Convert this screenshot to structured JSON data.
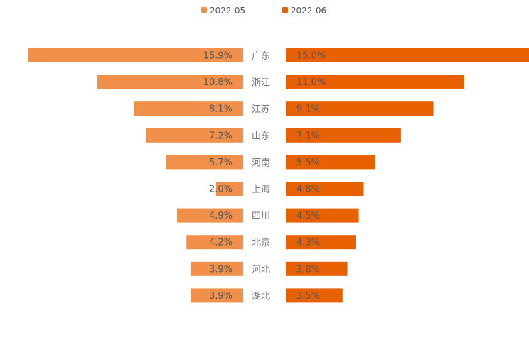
{
  "chart_data": {
    "type": "bar",
    "layout": "butterfly",
    "categories": [
      "广东",
      "浙江",
      "江苏",
      "山东",
      "河南",
      "上海",
      "四川",
      "北京",
      "河北",
      "湖北"
    ],
    "series": [
      {
        "name": "2022-05",
        "color": "#f0904a",
        "side": "left",
        "values": [
          15.9,
          10.8,
          8.1,
          7.2,
          5.7,
          2.0,
          4.9,
          4.2,
          3.9,
          3.9
        ],
        "labels": [
          "15.9%",
          "10.8%",
          "8.1%",
          "7.2%",
          "5.7%",
          "2.0%",
          "4.9%",
          "4.2%",
          "3.9%",
          "3.9%"
        ]
      },
      {
        "name": "2022-06",
        "color": "#e86100",
        "side": "right",
        "values": [
          15.0,
          11.0,
          9.1,
          7.1,
          5.5,
          4.8,
          4.5,
          4.3,
          3.8,
          3.5
        ],
        "labels": [
          "15.0%",
          "11.0%",
          "9.1%",
          "7.1%",
          "5.5%",
          "4.8%",
          "4.5%",
          "4.3%",
          "3.8%",
          "3.5%"
        ]
      }
    ],
    "legend": {
      "position": "top-center"
    },
    "grid": false
  }
}
